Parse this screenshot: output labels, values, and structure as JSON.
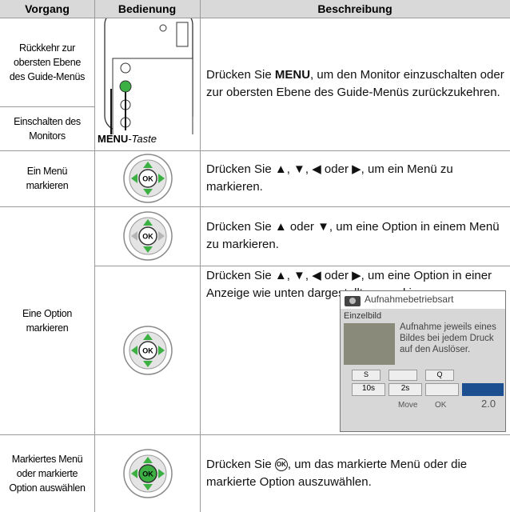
{
  "table": {
    "header": [
      "Vorgang",
      "Bedienung",
      "Beschreibung"
    ],
    "rows": [
      {
        "vorgang": [
          "Rückkehr zur obersten Ebene des Guide-Menüs",
          "Einschalten des Monitors"
        ],
        "bedienung": [
          "MENU",
          "-Taste"
        ],
        "beschreibung": [
          "Drücken Sie ",
          "MENU",
          ", um den Monitor einzuschalten oder zur obersten Ebene des Guide-Menüs zurückzukehren."
        ]
      },
      {
        "vorgang": "Ein Menü markieren",
        "bedienung": "OK",
        "beschreibung": "Drücken Sie ▲, ▼, ◀ oder ▶, um ein Menü zu markieren."
      },
      {
        "vorgang": "Eine Option markieren",
        "bedienung": "OK",
        "beschreibung": "Drücken Sie ▲ oder ▼, um eine Option in einem Menü zu markieren."
      },
      {
        "bedienung": "OK",
        "beschreibung": "Drücken Sie ▲, ▼, ◀ oder ▶, um eine Option in einer Anzeige wie unten dargestellt zu markieren.",
        "screen": {
          "title": "Aufnahmebetriebsart",
          "item": "Einzelbild",
          "text": "Aufnahme jeweils eines Bildes bei jedem Druck auf den Auslöser.",
          "options": [
            "S",
            "Q",
            "10s",
            "2s"
          ],
          "footer": [
            "Move",
            "OK",
            "2.0"
          ]
        }
      },
      {
        "vorgang": "Markiertes Menü oder markierte Option auswählen",
        "bedienung": "OK",
        "beschreibung": [
          "Drücken Sie ",
          "OK",
          ", um das markierte Menü oder die markierte Option auszuwählen."
        ]
      }
    ]
  }
}
